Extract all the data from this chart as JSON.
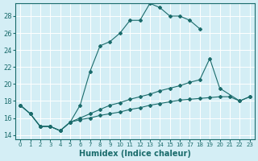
{
  "xlabel": "Humidex (Indice chaleur)",
  "bg_color": "#d4eef5",
  "line_color": "#1a6b6b",
  "grid_color": "#ffffff",
  "xlim": [
    -0.5,
    23.5
  ],
  "ylim": [
    13.5,
    29.5
  ],
  "xticks": [
    0,
    1,
    2,
    3,
    4,
    5,
    6,
    7,
    8,
    9,
    10,
    11,
    12,
    13,
    14,
    15,
    16,
    17,
    18,
    19,
    20,
    21,
    22,
    23
  ],
  "yticks": [
    14,
    16,
    18,
    20,
    22,
    24,
    26,
    28
  ],
  "top_line_x": [
    0,
    1,
    2,
    3,
    4,
    5,
    6,
    7,
    8,
    9,
    10,
    11,
    12,
    13,
    14,
    15,
    16,
    17,
    18
  ],
  "top_line_y": [
    17.5,
    16.5,
    15.0,
    15.0,
    14.5,
    15.5,
    17.5,
    21.5,
    24.5,
    25.0,
    26.0,
    27.5,
    27.5,
    29.5,
    29.0,
    28.0,
    28.0,
    27.5,
    26.5
  ],
  "mid_line_x": [
    0,
    1,
    2,
    3,
    4,
    5,
    6,
    7,
    8,
    9,
    10,
    11,
    12,
    13,
    14,
    15,
    16,
    17,
    18,
    19,
    20,
    22,
    23
  ],
  "mid_line_y": [
    17.5,
    16.5,
    15.0,
    15.0,
    14.5,
    15.5,
    16.0,
    16.5,
    17.0,
    17.5,
    17.8,
    18.2,
    18.5,
    18.8,
    19.2,
    19.5,
    19.8,
    20.2,
    20.5,
    23.0,
    19.5,
    18.0,
    18.5
  ],
  "low_line_x": [
    0,
    1,
    2,
    3,
    4,
    5,
    6,
    7,
    8,
    9,
    10,
    11,
    12,
    13,
    14,
    15,
    16,
    17,
    18,
    19,
    20,
    21,
    22,
    23
  ],
  "low_line_y": [
    17.5,
    16.5,
    15.0,
    15.0,
    14.5,
    15.5,
    15.8,
    16.0,
    16.3,
    16.5,
    16.7,
    17.0,
    17.2,
    17.5,
    17.7,
    17.9,
    18.1,
    18.2,
    18.3,
    18.4,
    18.5,
    18.5,
    18.0,
    18.5
  ]
}
